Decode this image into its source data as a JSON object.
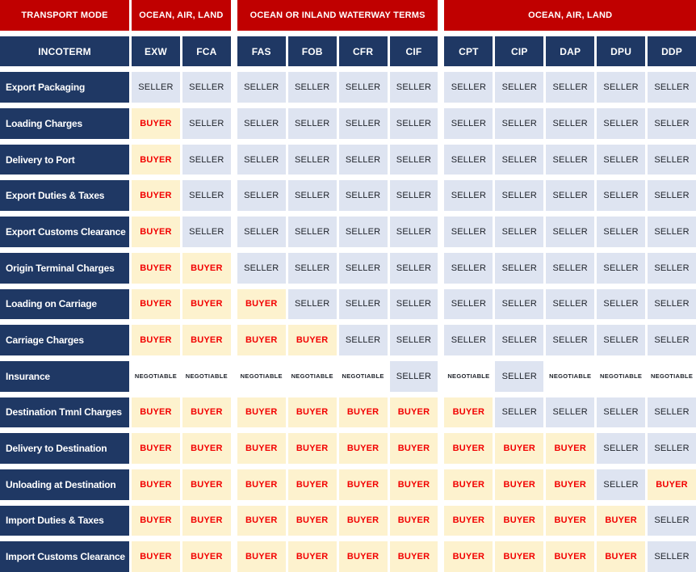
{
  "colors": {
    "header_red": "#C00000",
    "header_navy": "#1F3864",
    "seller_bg": "#DEE4F1",
    "seller_text": "#20242C",
    "buyer_bg": "#FDF2CE",
    "buyer_text": "#F20000",
    "negotiable_text": "#20242C",
    "page_bg": "#FFFFFF"
  },
  "chart_data": {
    "type": "table",
    "corner_top_label": "TRANSPORT MODE",
    "corner_bottom_label": "INCOTERM",
    "header_groups": [
      {
        "label": "OCEAN, AIR, LAND",
        "span": [
          "EXW",
          "FCA"
        ]
      },
      {
        "label": "OCEAN OR INLAND WATERWAY TERMS",
        "span": [
          "FAS",
          "CIF"
        ]
      },
      {
        "label": "OCEAN, AIR, LAND",
        "span": [
          "CPT",
          "DDP"
        ]
      }
    ],
    "columns": [
      "EXW",
      "FCA",
      "FAS",
      "FOB",
      "CFR",
      "CIF",
      "CPT",
      "CIP",
      "DAP",
      "DPU",
      "DDP"
    ],
    "rows": [
      {
        "label": "Export Packaging",
        "values": [
          "SELLER",
          "SELLER",
          "SELLER",
          "SELLER",
          "SELLER",
          "SELLER",
          "SELLER",
          "SELLER",
          "SELLER",
          "SELLER",
          "SELLER"
        ]
      },
      {
        "label": "Loading Charges",
        "values": [
          "BUYER",
          "SELLER",
          "SELLER",
          "SELLER",
          "SELLER",
          "SELLER",
          "SELLER",
          "SELLER",
          "SELLER",
          "SELLER",
          "SELLER"
        ]
      },
      {
        "label": "Delivery to Port",
        "values": [
          "BUYER",
          "SELLER",
          "SELLER",
          "SELLER",
          "SELLER",
          "SELLER",
          "SELLER",
          "SELLER",
          "SELLER",
          "SELLER",
          "SELLER"
        ]
      },
      {
        "label": "Export Duties & Taxes",
        "values": [
          "BUYER",
          "SELLER",
          "SELLER",
          "SELLER",
          "SELLER",
          "SELLER",
          "SELLER",
          "SELLER",
          "SELLER",
          "SELLER",
          "SELLER"
        ]
      },
      {
        "label": "Export Customs Clearance",
        "values": [
          "BUYER",
          "SELLER",
          "SELLER",
          "SELLER",
          "SELLER",
          "SELLER",
          "SELLER",
          "SELLER",
          "SELLER",
          "SELLER",
          "SELLER"
        ]
      },
      {
        "label": "Origin Terminal Charges",
        "values": [
          "BUYER",
          "BUYER",
          "SELLER",
          "SELLER",
          "SELLER",
          "SELLER",
          "SELLER",
          "SELLER",
          "SELLER",
          "SELLER",
          "SELLER"
        ]
      },
      {
        "label": "Loading on Carriage",
        "values": [
          "BUYER",
          "BUYER",
          "BUYER",
          "SELLER",
          "SELLER",
          "SELLER",
          "SELLER",
          "SELLER",
          "SELLER",
          "SELLER",
          "SELLER"
        ]
      },
      {
        "label": "Carriage Charges",
        "values": [
          "BUYER",
          "BUYER",
          "BUYER",
          "BUYER",
          "SELLER",
          "SELLER",
          "SELLER",
          "SELLER",
          "SELLER",
          "SELLER",
          "SELLER"
        ]
      },
      {
        "label": "Insurance",
        "values": [
          "NEGOTIABLE",
          "NEGOTIABLE",
          "NEGOTIABLE",
          "NEGOTIABLE",
          "NEGOTIABLE",
          "SELLER",
          "NEGOTIABLE",
          "SELLER",
          "NEGOTIABLE",
          "NEGOTIABLE",
          "NEGOTIABLE"
        ]
      },
      {
        "label": "Destination Tmnl Charges",
        "values": [
          "BUYER",
          "BUYER",
          "BUYER",
          "BUYER",
          "BUYER",
          "BUYER",
          "BUYER",
          "SELLER",
          "SELLER",
          "SELLER",
          "SELLER"
        ]
      },
      {
        "label": "Delivery to Destination",
        "values": [
          "BUYER",
          "BUYER",
          "BUYER",
          "BUYER",
          "BUYER",
          "BUYER",
          "BUYER",
          "BUYER",
          "BUYER",
          "SELLER",
          "SELLER"
        ]
      },
      {
        "label": "Unloading at Destination",
        "values": [
          "BUYER",
          "BUYER",
          "BUYER",
          "BUYER",
          "BUYER",
          "BUYER",
          "BUYER",
          "BUYER",
          "BUYER",
          "SELLER",
          "BUYER"
        ]
      },
      {
        "label": "Import Duties & Taxes",
        "values": [
          "BUYER",
          "BUYER",
          "BUYER",
          "BUYER",
          "BUYER",
          "BUYER",
          "BUYER",
          "BUYER",
          "BUYER",
          "BUYER",
          "SELLER"
        ]
      },
      {
        "label": "Import Customs Clearance",
        "values": [
          "BUYER",
          "BUYER",
          "BUYER",
          "BUYER",
          "BUYER",
          "BUYER",
          "BUYER",
          "BUYER",
          "BUYER",
          "BUYER",
          "SELLER"
        ]
      }
    ]
  }
}
